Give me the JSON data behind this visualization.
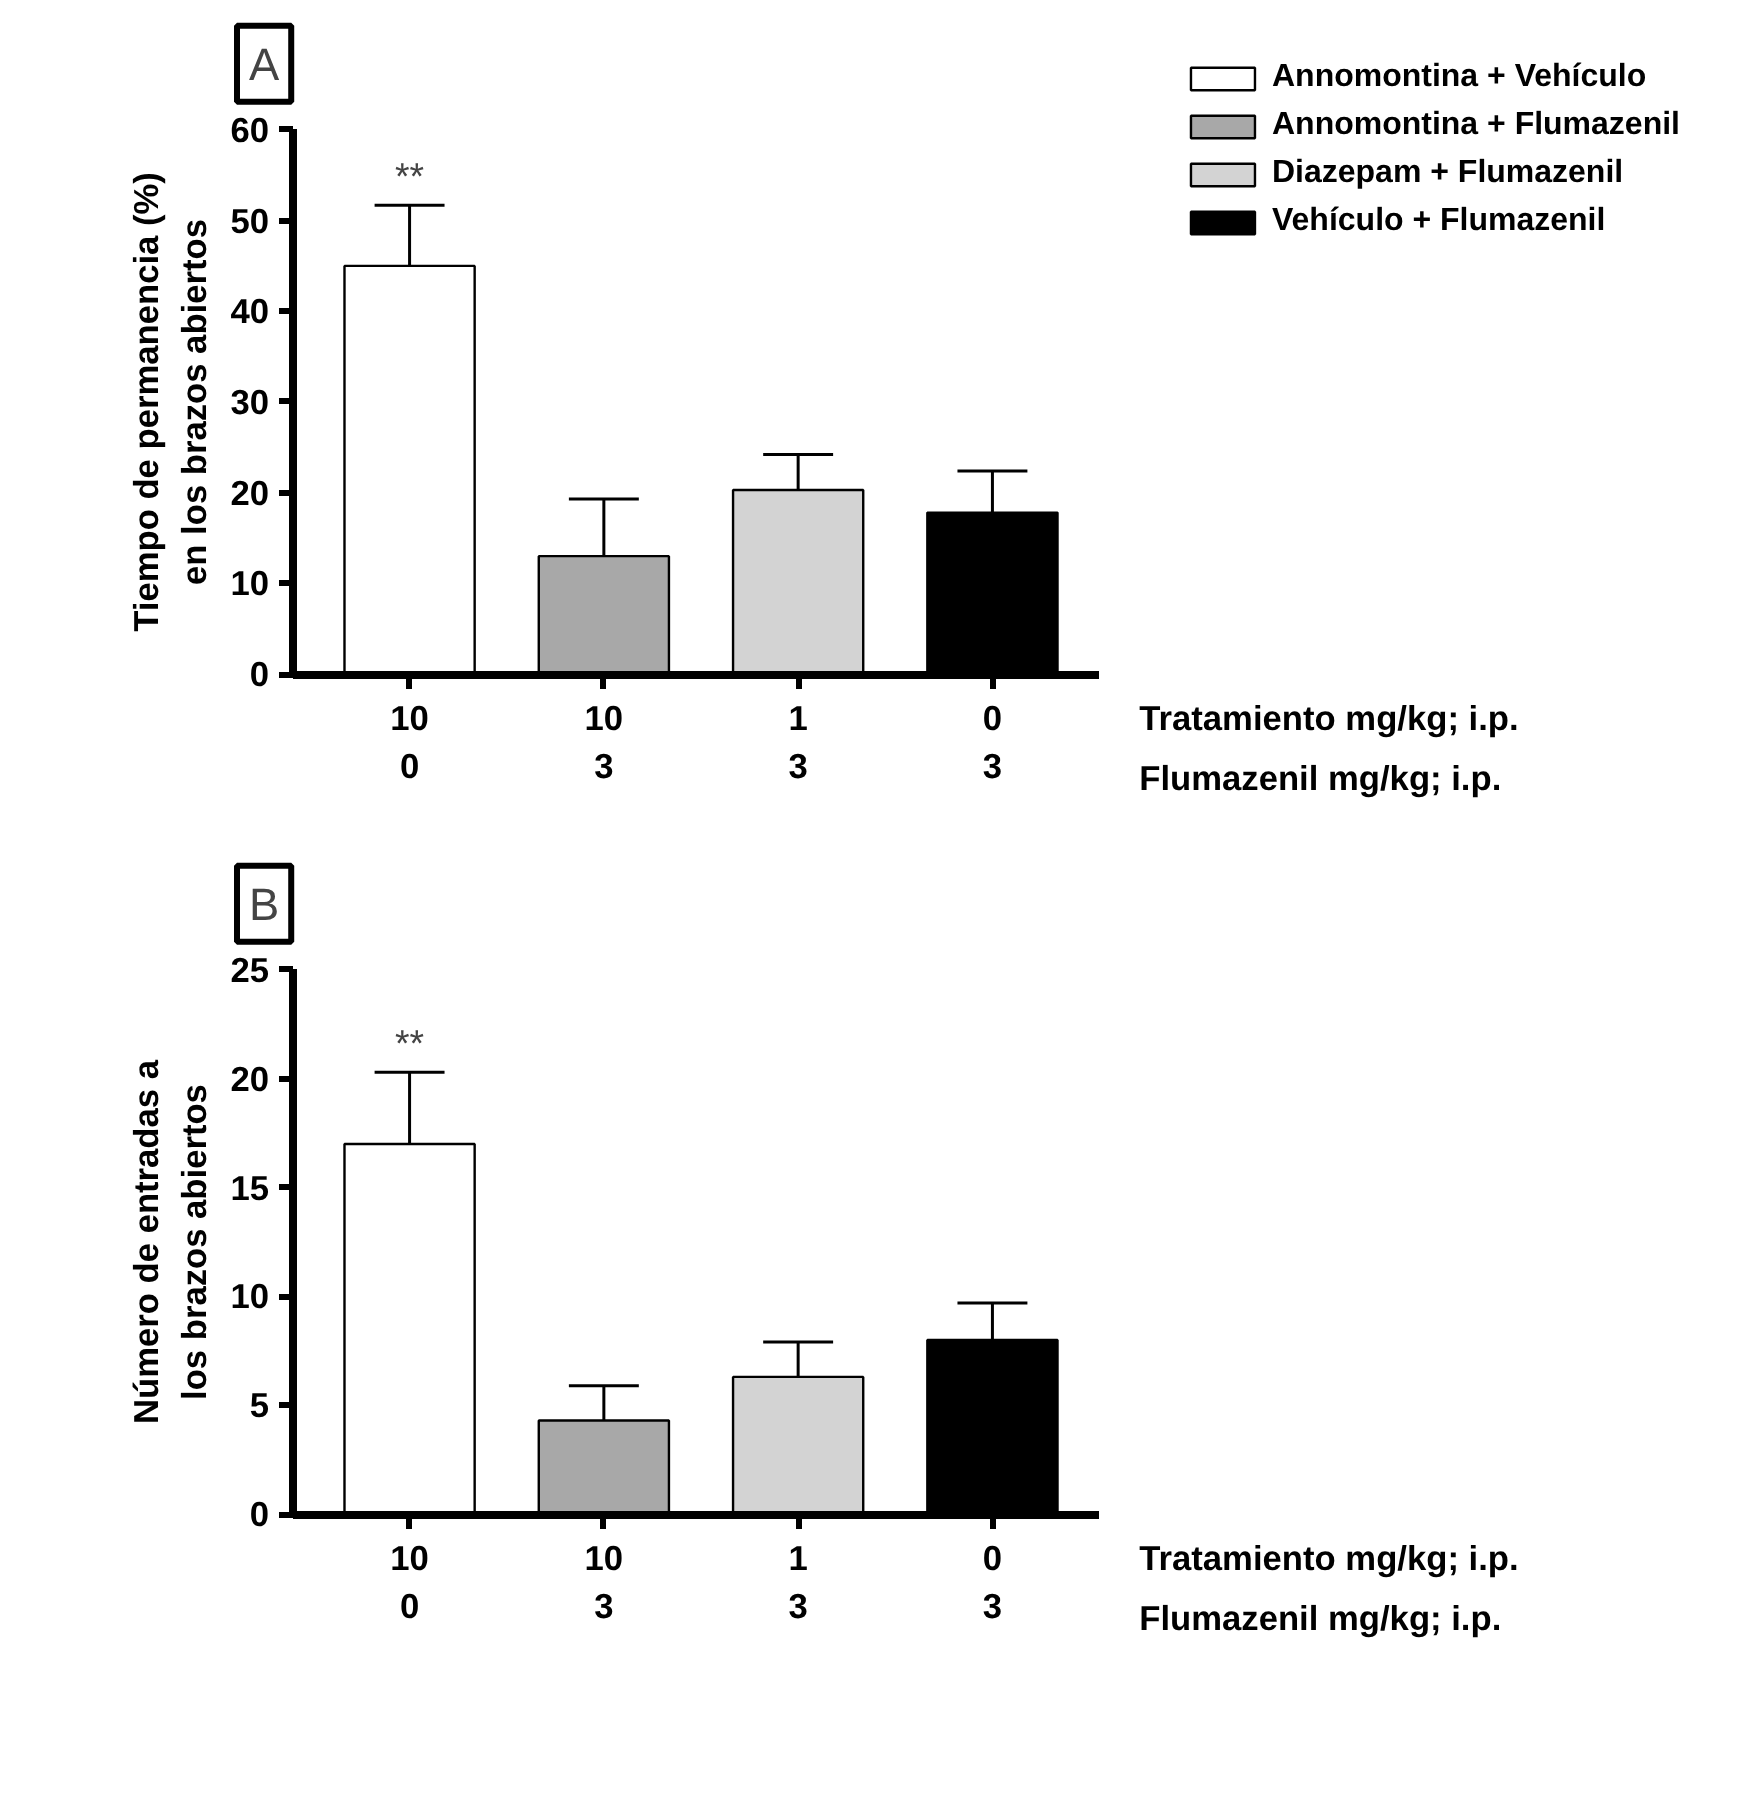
{
  "chart_data": [
    {
      "type": "bar",
      "title": "A",
      "ylabel": "Tiempo de permanencia (%)\nen los brazos abiertos",
      "xlabel": "Tratamiento mg/kg; i.p.\nFlumazenil mg/kg; i.p.",
      "categories": [
        "10\n0",
        "10\n3",
        "1\n3",
        "0\n3"
      ],
      "series": [
        {
          "name": "Annomontina + Vehículo",
          "color": "#ffffff",
          "values": [
            45,
            null,
            null,
            null
          ],
          "errors": [
            [
              45,
              51.7
            ],
            null,
            null,
            null
          ]
        },
        {
          "name": "Annomontina + Flumazenil",
          "color": "#a8a8a8",
          "values": [
            null,
            13,
            null,
            null
          ],
          "errors": [
            null,
            [
              13,
              19.3
            ],
            null,
            null
          ]
        },
        {
          "name": "Diazepam + Flumazenil",
          "color": "#d3d3d3",
          "values": [
            null,
            null,
            20.3,
            null
          ],
          "errors": [
            null,
            null,
            [
              20.3,
              24.2
            ],
            null
          ]
        },
        {
          "name": "Vehículo + Flumazenil",
          "color": "#000000",
          "values": [
            null,
            null,
            null,
            17.8
          ],
          "errors": [
            null,
            null,
            null,
            [
              17.8,
              22.4
            ]
          ]
        }
      ],
      "ylim": [
        0,
        60
      ],
      "yticks": [
        0,
        10,
        20,
        30,
        40,
        50,
        60
      ],
      "grid": false,
      "legend": "top right",
      "annotations": [
        "**"
      ]
    },
    {
      "type": "bar",
      "title": "B",
      "ylabel": "Número de entradas a\nlos brazos abiertos",
      "xlabel": "Tratamiento mg/kg; i.p.\nFlumazenil mg/kg; i.p.",
      "categories": [
        "10\n0",
        "10\n3",
        "1\n3",
        "0\n3"
      ],
      "series": [
        {
          "color": "#ffffff",
          "values": [
            17,
            null,
            null,
            null
          ],
          "errors": [
            [
              17,
              20.3
            ],
            null,
            null,
            null
          ]
        },
        {
          "color": "#a8a8a8",
          "values": [
            null,
            4.3,
            null,
            null
          ],
          "errors": [
            null,
            [
              4.3,
              5.9
            ],
            null,
            null
          ]
        },
        {
          "color": "#d3d3d3",
          "values": [
            null,
            null,
            6.3,
            null
          ],
          "errors": [
            null,
            null,
            [
              6.3,
              7.9
            ],
            null
          ]
        },
        {
          "color": "#000000",
          "values": [
            null,
            null,
            null,
            8.0
          ],
          "errors": [
            null,
            null,
            null,
            [
              8.0,
              9.7
            ]
          ]
        }
      ],
      "ylim": [
        0,
        25
      ],
      "yticks": [
        0,
        5,
        10,
        15,
        20,
        25
      ],
      "grid": false,
      "annotations": [
        "**"
      ]
    }
  ]
}
